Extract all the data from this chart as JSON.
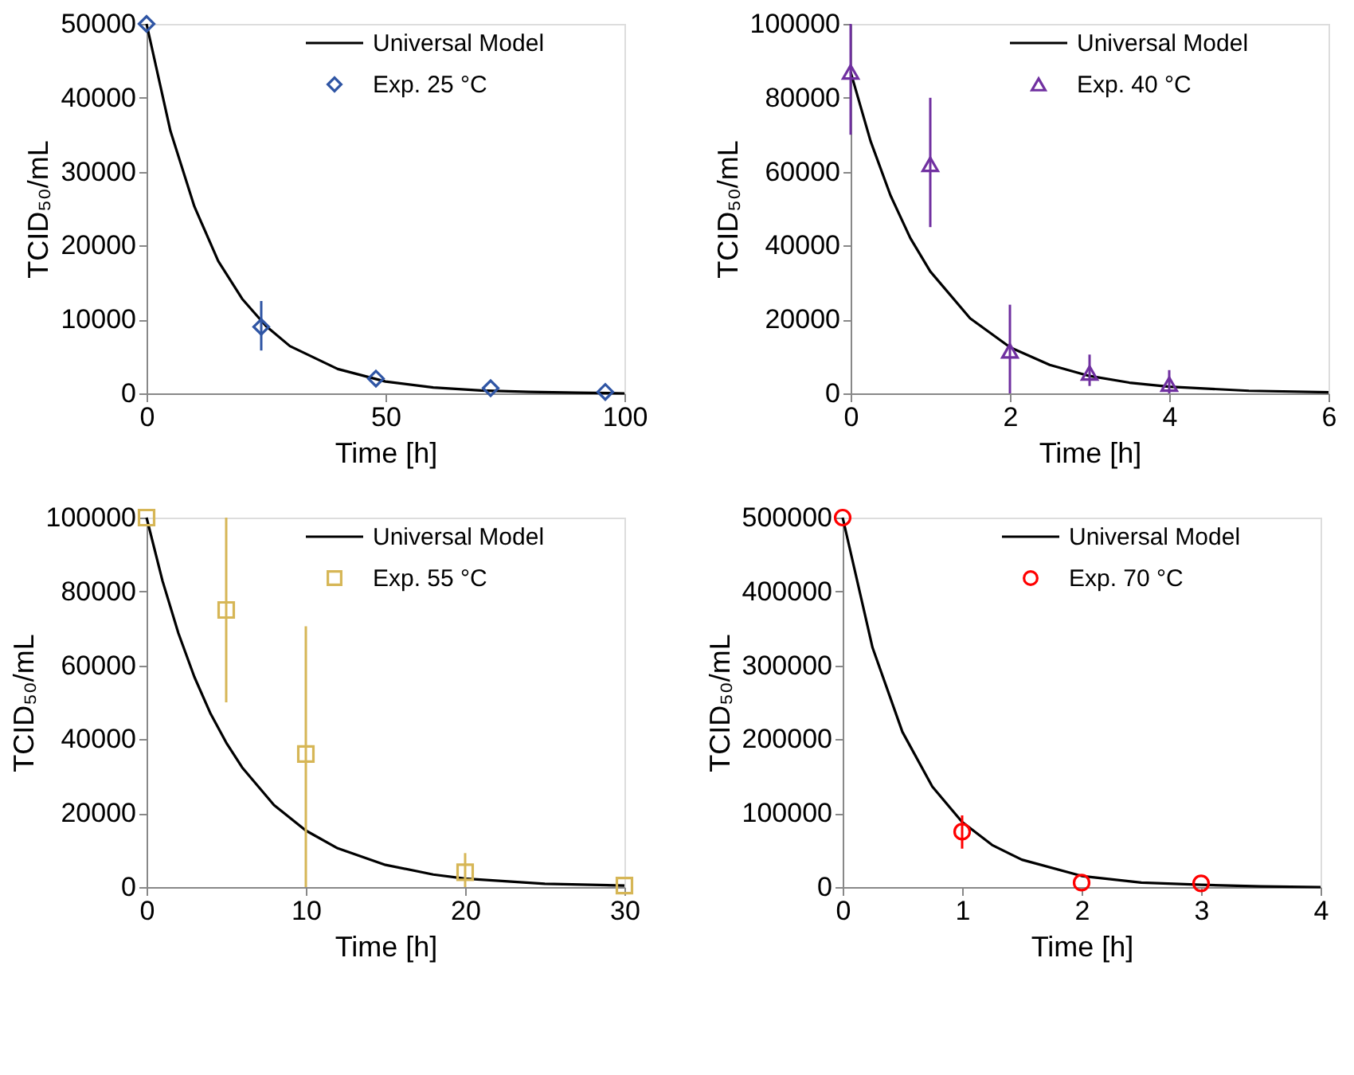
{
  "chart_data": [
    {
      "type": "scatter",
      "xlabel": "Time [h]",
      "ylabel": "TCID₅₀/mL",
      "xlim": [
        0,
        100
      ],
      "xticks": [
        0,
        50,
        100
      ],
      "ylim": [
        0,
        50000
      ],
      "yticks": [
        0,
        10000,
        20000,
        30000,
        40000,
        50000
      ],
      "legend": "top right",
      "grid": false,
      "series": [
        {
          "name": "Universal Model",
          "type": "line",
          "color": "#000000",
          "line_style": "solid",
          "x": [
            0,
            5,
            10,
            15,
            20,
            25,
            30,
            40,
            50,
            60,
            70,
            80,
            90,
            100
          ],
          "values": [
            50000,
            35500,
            25300,
            17900,
            12800,
            9100,
            6400,
            3300,
            1600,
            800,
            400,
            200,
            100,
            0
          ]
        },
        {
          "name": "Exp. 25 °C",
          "marker": "diamond",
          "color": "#2f55a4",
          "x": [
            0,
            24,
            48,
            72,
            96
          ],
          "values": [
            50000,
            9000,
            2000,
            700,
            200
          ],
          "errors": [
            null,
            [
              5800,
              12500
            ],
            null,
            null,
            null
          ]
        }
      ]
    },
    {
      "type": "scatter",
      "xlabel": "Time [h]",
      "ylabel": "TCID₅₀/mL",
      "xlim": [
        0,
        6
      ],
      "xticks": [
        0,
        2,
        4,
        6
      ],
      "ylim": [
        0,
        100000
      ],
      "yticks": [
        0,
        20000,
        40000,
        60000,
        80000,
        100000
      ],
      "legend": "top right",
      "grid": false,
      "series": [
        {
          "name": "Universal Model",
          "type": "line",
          "color": "#000000",
          "line_style": "solid",
          "x": [
            0,
            0.25,
            0.5,
            0.75,
            1,
            1.5,
            2,
            2.5,
            3,
            3.5,
            4,
            5,
            6
          ],
          "values": [
            87000,
            68300,
            53600,
            42000,
            33000,
            20300,
            12500,
            7700,
            4700,
            2900,
            1800,
            700,
            300
          ]
        },
        {
          "name": "Exp. 40 °C",
          "marker": "triangle",
          "color": "#7030a0",
          "x": [
            0,
            1,
            2,
            3,
            4
          ],
          "values": [
            87000,
            62000,
            11500,
            5500,
            2500
          ],
          "errors": [
            [
              70000,
              100000
            ],
            [
              45000,
              80000
            ],
            [
              0,
              24000
            ],
            [
              2000,
              10500
            ],
            [
              0,
              6300
            ]
          ]
        }
      ]
    },
    {
      "type": "scatter",
      "xlabel": "Time [h]",
      "ylabel": "TCID₅₀/mL",
      "xlim": [
        0,
        30
      ],
      "xticks": [
        0,
        10,
        20,
        30
      ],
      "ylim": [
        0,
        100000
      ],
      "yticks": [
        0,
        20000,
        40000,
        60000,
        80000,
        100000
      ],
      "legend": "top right",
      "grid": false,
      "series": [
        {
          "name": "Universal Model",
          "type": "line",
          "color": "#000000",
          "line_style": "solid",
          "x": [
            0,
            1,
            2,
            3,
            4,
            5,
            6,
            8,
            10,
            12,
            15,
            18,
            20,
            25,
            30
          ],
          "values": [
            100000,
            82900,
            68700,
            56900,
            47100,
            39100,
            32400,
            22200,
            15300,
            10500,
            6000,
            3400,
            2300,
            900,
            400
          ]
        },
        {
          "name": "Exp. 55 °C",
          "marker": "square",
          "color": "#d6b656",
          "x": [
            0,
            5,
            10,
            20,
            30
          ],
          "values": [
            100000,
            75000,
            36000,
            4000,
            400
          ],
          "errors": [
            null,
            [
              50000,
              100000
            ],
            [
              0,
              70600
            ],
            [
              0,
              9200
            ],
            null
          ]
        }
      ]
    },
    {
      "type": "scatter",
      "xlabel": "Time [h]",
      "ylabel": "TCID₅₀/mL",
      "xlim": [
        0,
        4
      ],
      "xticks": [
        0,
        1,
        2,
        3,
        4
      ],
      "ylim": [
        0,
        500000
      ],
      "yticks": [
        0,
        100000,
        200000,
        300000,
        400000,
        500000
      ],
      "legend": "top right",
      "grid": false,
      "series": [
        {
          "name": "Universal Model",
          "type": "line",
          "color": "#000000",
          "line_style": "solid",
          "x": [
            0,
            0.25,
            0.5,
            0.75,
            1,
            1.25,
            1.5,
            2,
            2.5,
            3,
            3.5,
            4
          ],
          "values": [
            500000,
            324000,
            210000,
            136000,
            88000,
            57000,
            37000,
            15000,
            6000,
            3000,
            1000,
            0
          ]
        },
        {
          "name": "Exp. 70 °C",
          "marker": "circle",
          "color": "#ff0000",
          "x": [
            0,
            1,
            2,
            3
          ],
          "values": [
            500000,
            75000,
            6000,
            5000
          ],
          "errors": [
            null,
            [
              52000,
              97000
            ],
            null,
            null
          ]
        }
      ]
    }
  ]
}
